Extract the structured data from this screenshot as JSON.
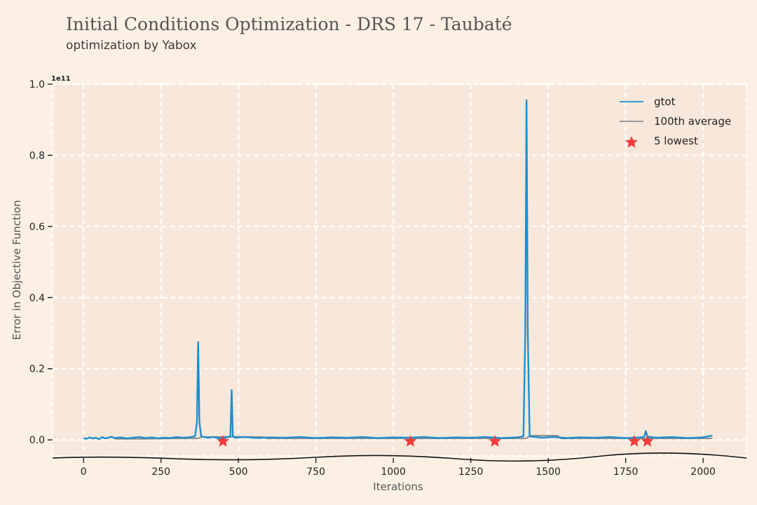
{
  "chart_data": {
    "type": "line",
    "title": "Initial Conditions Optimization - DRS 17 - Taubaté",
    "subtitle": "optimization by Yabox",
    "xlabel": "Iterations",
    "ylabel": "Error in Objective Function",
    "y_multiplier_label": "1e11",
    "xlim": [
      -100,
      2140
    ],
    "ylim": [
      -0.045,
      1.0
    ],
    "x_ticks": [
      0,
      250,
      500,
      750,
      1000,
      1250,
      1500,
      1750,
      2000
    ],
    "x_tick_labels": [
      "0",
      "250",
      "500",
      "750",
      "1000",
      "1250",
      "1500",
      "1750",
      "2000"
    ],
    "y_ticks": [
      0.0,
      0.2,
      0.4,
      0.6,
      0.8,
      1.0
    ],
    "y_tick_labels": [
      "0.0",
      "0.2",
      "0.4",
      "0.6",
      "0.8",
      "1.0"
    ],
    "grid": true,
    "legend_position": "top-right",
    "series": [
      {
        "name": "gtot",
        "color": "#1a8fd0",
        "x": [
          0,
          10,
          20,
          30,
          40,
          50,
          60,
          70,
          80,
          90,
          100,
          120,
          140,
          160,
          180,
          200,
          220,
          240,
          260,
          280,
          300,
          320,
          340,
          360,
          366,
          370,
          374,
          380,
          400,
          420,
          440,
          460,
          474,
          478,
          482,
          490,
          520,
          560,
          600,
          650,
          700,
          750,
          800,
          850,
          900,
          950,
          1000,
          1050,
          1100,
          1150,
          1200,
          1250,
          1300,
          1350,
          1400,
          1420,
          1426,
          1430,
          1434,
          1440,
          1480,
          1520,
          1560,
          1600,
          1650,
          1700,
          1750,
          1800,
          1810,
          1815,
          1820,
          1850,
          1900,
          1950,
          2000,
          2030
        ],
        "values": [
          0.005,
          0.003,
          0.007,
          0.004,
          0.006,
          0.002,
          0.008,
          0.004,
          0.006,
          0.009,
          0.005,
          0.007,
          0.004,
          0.006,
          0.008,
          0.005,
          0.007,
          0.004,
          0.006,
          0.005,
          0.008,
          0.006,
          0.007,
          0.01,
          0.05,
          0.275,
          0.05,
          0.01,
          0.006,
          0.008,
          0.004,
          0.006,
          0.01,
          0.14,
          0.01,
          0.006,
          0.008,
          0.005,
          0.007,
          0.006,
          0.008,
          0.005,
          0.007,
          0.006,
          0.008,
          0.005,
          0.007,
          0.006,
          0.008,
          0.005,
          0.007,
          0.006,
          0.008,
          0.005,
          0.007,
          0.01,
          0.3,
          0.955,
          0.3,
          0.01,
          0.006,
          0.008,
          0.005,
          0.007,
          0.006,
          0.008,
          0.005,
          0.007,
          0.009,
          0.025,
          0.009,
          0.006,
          0.008,
          0.005,
          0.007,
          0.012
        ]
      },
      {
        "name": "100th average",
        "color": "#8c8c8c",
        "x": [
          100,
          200,
          300,
          370,
          380,
          480,
          580,
          590,
          700,
          800,
          900,
          1000,
          1100,
          1200,
          1300,
          1400,
          1430,
          1440,
          1530,
          1540,
          1650,
          1750,
          1850,
          1950,
          2030
        ],
        "values": [
          0.003,
          0.003,
          0.004,
          0.004,
          0.008,
          0.009,
          0.008,
          0.004,
          0.004,
          0.004,
          0.004,
          0.004,
          0.004,
          0.004,
          0.004,
          0.004,
          0.004,
          0.012,
          0.012,
          0.004,
          0.004,
          0.004,
          0.004,
          0.004,
          0.004
        ]
      }
    ],
    "lowest_points": {
      "name": "5 lowest",
      "color": "#f03c3c",
      "x": [
        450,
        1055,
        1328,
        1778,
        1820
      ],
      "values": [
        -0.004,
        -0.004,
        -0.004,
        -0.004,
        -0.004
      ]
    }
  }
}
